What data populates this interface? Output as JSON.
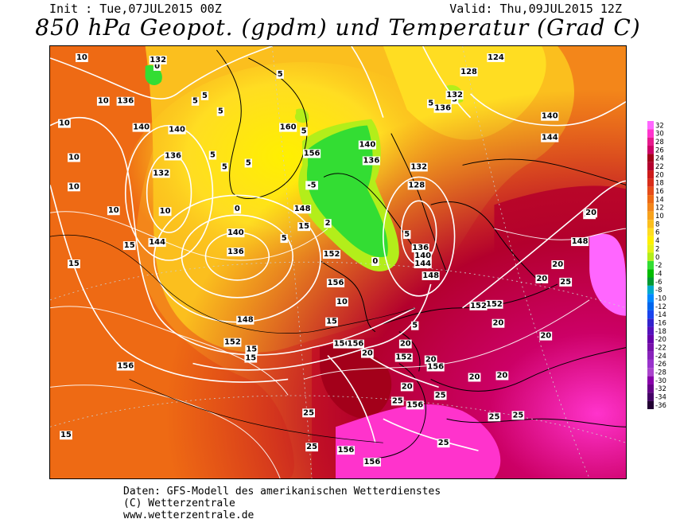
{
  "header": {
    "init": "Init : Tue,07JUL2015 00Z",
    "valid": "Valid: Thu,09JUL2015 12Z",
    "title": "850 hPa Geopot. (gpdm) und Temperatur (Grad C)"
  },
  "legend": {
    "levels": [
      "32",
      "30",
      "28",
      "26",
      "24",
      "22",
      "20",
      "18",
      "16",
      "14",
      "12",
      "10",
      "8",
      "6",
      "4",
      "2",
      "0",
      "-2",
      "-4",
      "-6",
      "-8",
      "-10",
      "-12",
      "-14",
      "-16",
      "-18",
      "-20",
      "-22",
      "-24",
      "-26",
      "-28",
      "-30",
      "-32",
      "-34",
      "-36"
    ],
    "colors": [
      "#ff66ff",
      "#ff33cc",
      "#e6198c",
      "#cc0066",
      "#a3001a",
      "#b3002d",
      "#cc1a1a",
      "#d92e1a",
      "#e64d1a",
      "#ee6a14",
      "#f3861a",
      "#f7a21d",
      "#fbbf1e",
      "#ffdd22",
      "#fff000",
      "#e6f21a",
      "#b3ee1a",
      "#33dd33",
      "#00bb00",
      "#009933",
      "#00aacc",
      "#0088ff",
      "#0066ee",
      "#1a44ee",
      "#3322cc",
      "#5511bb",
      "#6600aa",
      "#7711aa",
      "#8822bb",
      "#9933cc",
      "#aa44cc",
      "#8800aa",
      "#660088",
      "#440066",
      "#220033"
    ]
  },
  "map_labels": {
    "temperature": [
      "10",
      "10",
      "10",
      "10",
      "10",
      "10",
      "10",
      "10",
      "15",
      "15",
      "15",
      "15",
      "15",
      "15",
      "15",
      "0",
      "0",
      "5",
      "5",
      "5",
      "5",
      "5",
      "5",
      "5",
      "5",
      "5",
      "5",
      "5",
      "5",
      "5",
      "-5",
      "2",
      "0",
      "20",
      "20",
      "20",
      "20",
      "20",
      "20",
      "20",
      "20",
      "20",
      "20",
      "20",
      "20",
      "25",
      "25",
      "25",
      "25",
      "25",
      "25",
      "25",
      "25"
    ],
    "geopotential": [
      "132",
      "136",
      "140",
      "140",
      "136",
      "132",
      "144",
      "140",
      "136",
      "148",
      "152",
      "156",
      "152",
      "148",
      "156",
      "160",
      "156",
      "140",
      "136",
      "132",
      "128",
      "136",
      "140",
      "144",
      "148",
      "152",
      "156",
      "152",
      "156",
      "124",
      "128",
      "132",
      "136",
      "140",
      "144",
      "148",
      "152",
      "156",
      "156",
      "156",
      "156"
    ]
  },
  "footer": {
    "line1": "Daten: GFS-Modell des amerikanischen Wetterdienstes",
    "line2": "(C) Wetterzentrale",
    "line3": "www.wetterzentrale.de"
  }
}
